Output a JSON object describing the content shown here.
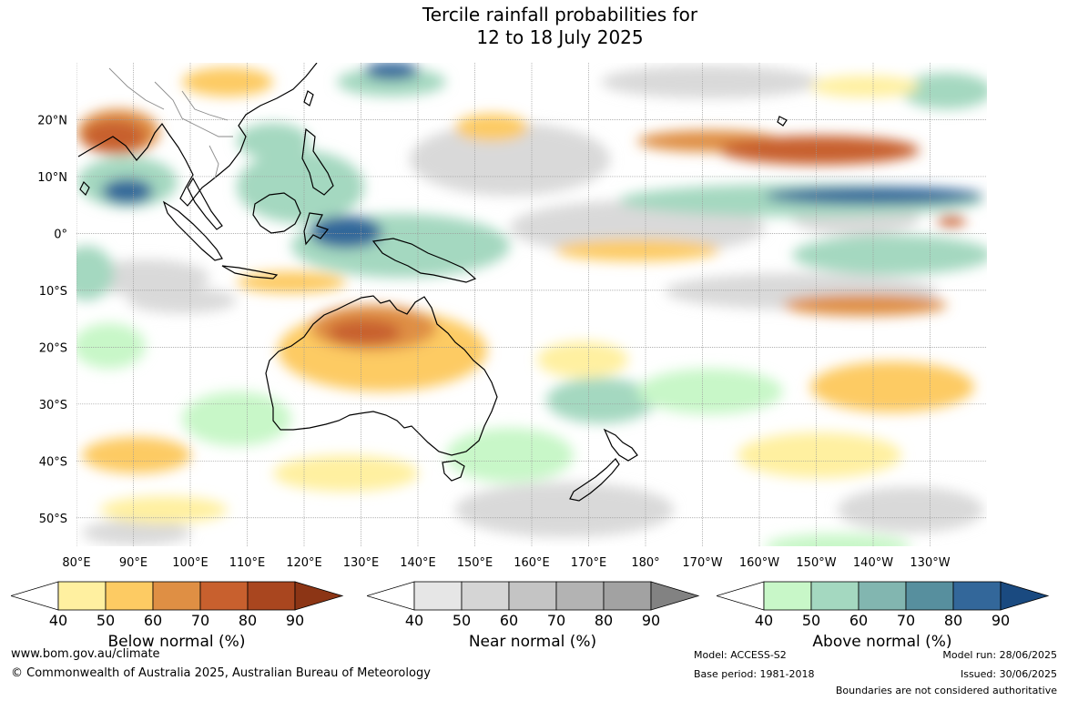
{
  "title": {
    "line1": "Tercile rainfall probabilities for",
    "line2": "12 to 18 July 2025"
  },
  "map": {
    "lat_labels": [
      "20°N",
      "10°N",
      "0°",
      "10°S",
      "20°S",
      "30°S",
      "40°S",
      "50°S"
    ],
    "lon_labels": [
      "80°E",
      "90°E",
      "100°E",
      "110°E",
      "120°E",
      "130°E",
      "140°E",
      "150°E",
      "160°E",
      "170°E",
      "180°",
      "170°W",
      "160°W",
      "150°W",
      "140°W",
      "130°W"
    ],
    "lat_values": [
      20,
      10,
      0,
      -10,
      -20,
      -30,
      -40,
      -50
    ],
    "lon_values": [
      80,
      90,
      100,
      110,
      120,
      130,
      140,
      150,
      160,
      170,
      180,
      190,
      200,
      210,
      220,
      230
    ],
    "lat_range": [
      -55,
      30
    ],
    "lon_range": [
      80,
      240
    ],
    "land_fill": "#ffffff",
    "coast_color": "#000000"
  },
  "colorbars": [
    {
      "name": "below",
      "title": "Below normal (%)",
      "ticks": [
        "40",
        "50",
        "60",
        "70",
        "80",
        "90"
      ],
      "colors": [
        "#fff0a0",
        "#fdcb63",
        "#df8f44",
        "#c8602e",
        "#a9461f"
      ],
      "extend_color": "#8c3515"
    },
    {
      "name": "near",
      "title": "Near normal (%)",
      "ticks": [
        "40",
        "50",
        "60",
        "70",
        "80",
        "90"
      ],
      "colors": [
        "#e6e6e6",
        "#d5d5d5",
        "#c4c4c4",
        "#b3b3b3",
        "#a2a2a2"
      ],
      "extend_color": "#828282"
    },
    {
      "name": "above",
      "title": "Above normal (%)",
      "ticks": [
        "40",
        "50",
        "60",
        "70",
        "80",
        "90"
      ],
      "colors": [
        "#c8f7c8",
        "#a4d8c0",
        "#82b6b0",
        "#578f9e",
        "#33679a"
      ],
      "extend_color": "#1a4a80"
    }
  ],
  "footer": {
    "website": "www.bom.gov.au/climate",
    "copyright": "© Commonwealth of Australia 2025, Australian Bureau of Meteorology",
    "model": "Model: ACCESS-S2",
    "base_period": "Base period: 1981-2018",
    "model_run": "Model run: 28/06/2025",
    "issued": "Issued: 30/06/2025",
    "boundaries": "Boundaries are not considered authoritative"
  }
}
